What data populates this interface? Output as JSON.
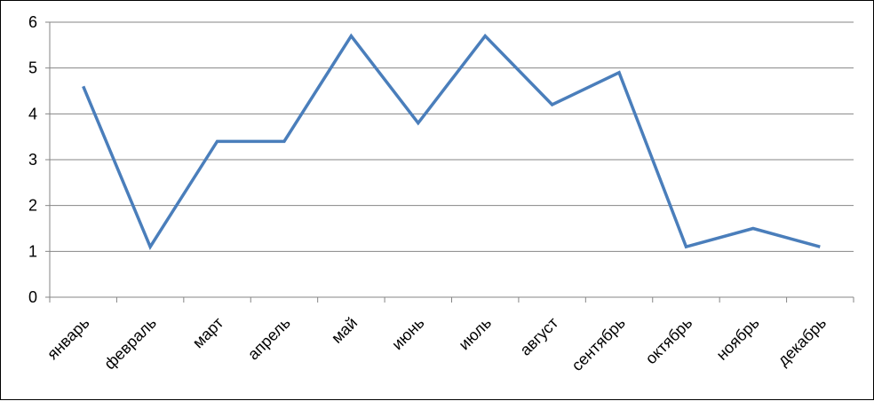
{
  "chart_data": {
    "type": "line",
    "title": "",
    "xlabel": "",
    "ylabel": "",
    "categories": [
      "январь",
      "февраль",
      "март",
      "апрель",
      "май",
      "июнь",
      "июль",
      "август",
      "сентябрь",
      "октябрь",
      "ноябрь",
      "декабрь"
    ],
    "series": [
      {
        "values": [
          4.6,
          1.1,
          3.4,
          3.4,
          5.7,
          3.8,
          5.7,
          4.2,
          4.9,
          1.1,
          1.5,
          1.1
        ]
      }
    ],
    "ylim": [
      0,
      6
    ],
    "yticks": [
      "0",
      "1",
      "2",
      "3",
      "4",
      "5",
      "6"
    ],
    "grid": true,
    "legend": "none",
    "colors": {
      "line": "#4A7EBB",
      "grid": "#868686",
      "axis": "#868686"
    }
  }
}
